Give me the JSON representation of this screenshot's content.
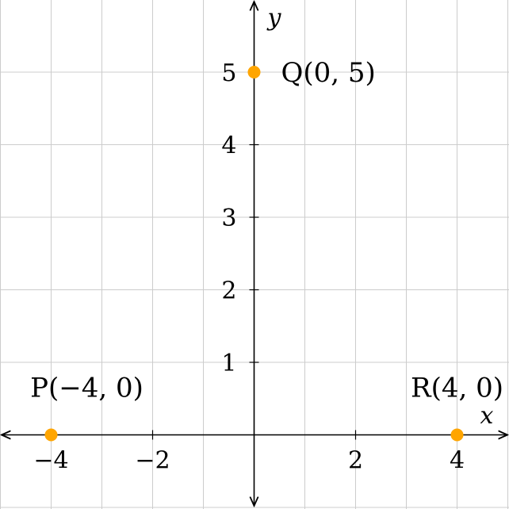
{
  "chart_data": {
    "type": "scatter",
    "xlabel": "x",
    "ylabel": "y",
    "xlim": [
      -5,
      5
    ],
    "ylim": [
      -1,
      6
    ],
    "grid": true,
    "x_ticks": [
      -4,
      -2,
      2,
      4
    ],
    "x_tick_labels": [
      "−4",
      "−2",
      "2",
      "4"
    ],
    "y_ticks": [
      1,
      2,
      3,
      4,
      5
    ],
    "y_tick_labels": [
      "1",
      "2",
      "3",
      "4",
      "5"
    ],
    "point_color": "#FFA500",
    "points": [
      {
        "x": -4,
        "y": 0,
        "label": "P(−4, 0)"
      },
      {
        "x": 0,
        "y": 5,
        "label": "Q(0, 5)"
      },
      {
        "x": 4,
        "y": 0,
        "label": "R(4, 0)"
      }
    ]
  }
}
